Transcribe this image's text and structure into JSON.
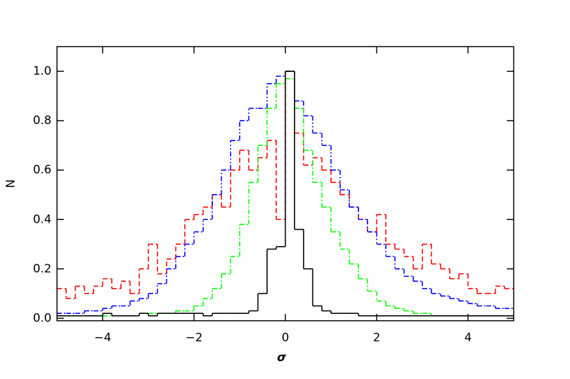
{
  "chart_data": {
    "type": "histogram",
    "xlabel": "σ",
    "ylabel": "N",
    "bins": [
      -5,
      -4.8,
      -4.6,
      -4.4,
      -4.2,
      -4,
      -3.8,
      -3.6,
      -3.4,
      -3.2,
      -3,
      -2.8,
      -2.6,
      -2.4,
      -2.2,
      -2,
      -1.8,
      -1.6,
      -1.4,
      -1.2,
      -1,
      -0.8,
      -0.6,
      -0.4,
      -0.2,
      0,
      0.2,
      0.4,
      0.6,
      0.8,
      1,
      1.2,
      1.4,
      1.6,
      1.8,
      2,
      2.2,
      2.4,
      2.6,
      2.8,
      3,
      3.2,
      3.4,
      3.6,
      3.8,
      4,
      4.2,
      4.4,
      4.6,
      4.8,
      5
    ],
    "series": [
      {
        "color": "#ff0000",
        "dash": "dashed",
        "values": [
          0.12,
          0.08,
          0.13,
          0.1,
          0.13,
          0.16,
          0.12,
          0.15,
          0.1,
          0.2,
          0.3,
          0.18,
          0.24,
          0.3,
          0.4,
          0.42,
          0.45,
          0.5,
          0.45,
          0.6,
          0.68,
          0.6,
          0.65,
          0.72,
          0.4,
          1.0,
          0.75,
          0.62,
          0.65,
          0.6,
          0.55,
          0.5,
          0.45,
          0.4,
          0.35,
          0.42,
          0.3,
          0.28,
          0.25,
          0.2,
          0.3,
          0.22,
          0.2,
          0.16,
          0.18,
          0.12,
          0.1,
          0.1,
          0.13,
          0.12
        ]
      },
      {
        "color": "#0000ff",
        "dash": "dash-dot-dot",
        "values": [
          0.02,
          0.02,
          0.02,
          0.03,
          0.03,
          0.04,
          0.05,
          0.05,
          0.07,
          0.08,
          0.1,
          0.14,
          0.2,
          0.25,
          0.3,
          0.35,
          0.4,
          0.5,
          0.6,
          0.72,
          0.8,
          0.85,
          0.85,
          0.95,
          0.98,
          1.0,
          0.88,
          0.82,
          0.75,
          0.7,
          0.6,
          0.52,
          0.45,
          0.4,
          0.35,
          0.3,
          0.25,
          0.2,
          0.17,
          0.15,
          0.12,
          0.1,
          0.09,
          0.08,
          0.07,
          0.06,
          0.05,
          0.05,
          0.04,
          0.04
        ]
      },
      {
        "color": "#00ff00",
        "dash": "dash-dot",
        "values": [
          0.01,
          0.01,
          0.01,
          0.01,
          0.01,
          0.01,
          0.01,
          0.01,
          0.01,
          0.02,
          0.02,
          0.02,
          0.02,
          0.03,
          0.03,
          0.05,
          0.08,
          0.12,
          0.18,
          0.25,
          0.38,
          0.55,
          0.7,
          0.85,
          0.95,
          0.97,
          0.85,
          0.68,
          0.55,
          0.45,
          0.35,
          0.28,
          0.22,
          0.16,
          0.11,
          0.07,
          0.05,
          0.04,
          0.03,
          0.02,
          0.02,
          0.01,
          0.01,
          0.01,
          0.01,
          0.01,
          0.01,
          0.01,
          0.01,
          0.01
        ]
      },
      {
        "color": "#000000",
        "dash": "solid",
        "values": [
          0.01,
          0.01,
          0.01,
          0.01,
          0.01,
          0.02,
          0.01,
          0.01,
          0.01,
          0.02,
          0.01,
          0.02,
          0.02,
          0.02,
          0.02,
          0.02,
          0.01,
          0.02,
          0.02,
          0.02,
          0.02,
          0.03,
          0.1,
          0.28,
          0.29,
          1.0,
          0.36,
          0.2,
          0.05,
          0.03,
          0.02,
          0.02,
          0.02,
          0.01,
          0.01,
          0.01,
          0.01,
          0.01,
          0.01,
          0.01,
          0.01,
          0.01,
          0.01,
          0.01,
          0.01,
          0.01,
          0.01,
          0.01,
          0.01,
          0.01
        ]
      }
    ],
    "xlim": [
      -5,
      5
    ],
    "ylim": [
      -0.01,
      1.1
    ],
    "xticks": [
      {
        "value": -4,
        "label": "−4"
      },
      {
        "value": -2,
        "label": "−2"
      },
      0,
      2,
      4
    ],
    "yticks": [
      {
        "value": 0,
        "label": "0.0"
      },
      0.2,
      0.4,
      0.6,
      0.8,
      {
        "value": 1,
        "label": "1.0"
      }
    ]
  }
}
